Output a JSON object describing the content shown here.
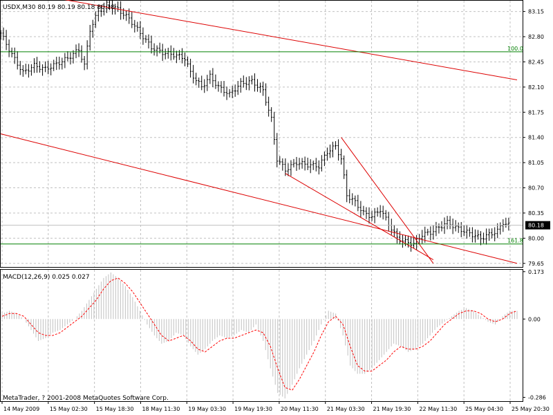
{
  "chart_data": [
    {
      "type": "ohlc",
      "title": "USDX,M30 80.19 80.19 80.18 80.18",
      "ylim": [
        79.6,
        83.3
      ],
      "grid": true,
      "y_ticks": [
        "83.15",
        "82.80",
        "82.45",
        "82.10",
        "81.75",
        "81.40",
        "81.05",
        "80.70",
        "80.35",
        "80.00",
        "79.65"
      ],
      "current_price_label": "80.18",
      "current_price": 80.18,
      "fib_levels": [
        {
          "label": "100.0",
          "value": 82.59
        },
        {
          "label": "161.8",
          "value": 79.92
        }
      ],
      "x_labels": [
        "14 May 2009",
        "15 May 02:30",
        "15 May 18:30",
        "18 May 11:30",
        "19 May 03:30",
        "19 May 19:30",
        "20 May 11:30",
        "21 May 03:30",
        "21 May 19:30",
        "22 May 11:30",
        "25 May 04:30",
        "25 May 20:30"
      ],
      "close_path": [
        [
          0,
          82.85
        ],
        [
          4,
          82.55
        ],
        [
          8,
          82.3
        ],
        [
          12,
          82.4
        ],
        [
          16,
          82.35
        ],
        [
          20,
          82.42
        ],
        [
          24,
          82.5
        ],
        [
          28,
          82.62
        ],
        [
          30,
          82.4
        ],
        [
          32,
          82.9
        ],
        [
          35,
          83.15
        ],
        [
          38,
          83.25
        ],
        [
          42,
          83.18
        ],
        [
          46,
          83.05
        ],
        [
          50,
          82.85
        ],
        [
          54,
          82.65
        ],
        [
          58,
          82.58
        ],
        [
          62,
          82.55
        ],
        [
          66,
          82.5
        ],
        [
          68,
          82.3
        ],
        [
          72,
          82.1
        ],
        [
          75,
          82.25
        ],
        [
          78,
          82.1
        ],
        [
          82,
          82.0
        ],
        [
          86,
          82.15
        ],
        [
          90,
          82.18
        ],
        [
          94,
          82.05
        ],
        [
          97,
          81.65
        ],
        [
          99,
          81.1
        ],
        [
          102,
          80.95
        ],
        [
          106,
          81.05
        ],
        [
          110,
          81.02
        ],
        [
          114,
          81.0
        ],
        [
          117,
          81.2
        ],
        [
          120,
          81.28
        ],
        [
          122,
          81.1
        ],
        [
          124,
          80.6
        ],
        [
          127,
          80.5
        ],
        [
          130,
          80.35
        ],
        [
          133,
          80.3
        ],
        [
          136,
          80.4
        ],
        [
          139,
          80.2
        ],
        [
          142,
          80.0
        ],
        [
          145,
          79.95
        ],
        [
          148,
          79.92
        ],
        [
          151,
          80.05
        ],
        [
          154,
          80.08
        ],
        [
          157,
          80.15
        ],
        [
          160,
          80.22
        ],
        [
          163,
          80.15
        ],
        [
          166,
          80.1
        ],
        [
          169,
          80.05
        ],
        [
          172,
          80.0
        ],
        [
          175,
          80.05
        ],
        [
          178,
          80.1
        ],
        [
          180,
          80.22
        ],
        [
          182,
          80.18
        ]
      ],
      "trendlines": [
        {
          "from": [
            22,
            83.32
          ],
          "to": [
            185,
            82.2
          ],
          "color": "#dd0000"
        },
        {
          "from": [
            0,
            81.45
          ],
          "to": [
            185,
            79.65
          ],
          "color": "#dd0000"
        },
        {
          "from": [
            102,
            80.9
          ],
          "to": [
            155,
            79.7
          ],
          "color": "#dd0000"
        },
        {
          "from": [
            122,
            81.4
          ],
          "to": [
            155,
            79.65
          ],
          "color": "#dd0000"
        }
      ]
    },
    {
      "type": "macd",
      "title": "MACD(12,26,9) 0.025 0.027",
      "ylim": [
        -0.3,
        0.18
      ],
      "y_ticks": [
        "0.173",
        "0.00",
        "-0.286"
      ],
      "histogram": [
        0.02,
        0.03,
        0.02,
        0.0,
        -0.04,
        -0.08,
        -0.07,
        -0.05,
        -0.04,
        -0.02,
        0.0,
        0.03,
        0.07,
        0.11,
        0.15,
        0.17,
        0.15,
        0.12,
        0.08,
        0.03,
        -0.02,
        -0.06,
        -0.09,
        -0.08,
        -0.05,
        -0.06,
        -0.1,
        -0.13,
        -0.11,
        -0.08,
        -0.06,
        -0.07,
        -0.06,
        -0.04,
        -0.05,
        -0.02,
        -0.08,
        -0.18,
        -0.27,
        -0.29,
        -0.24,
        -0.18,
        -0.13,
        -0.08,
        -0.02,
        0.03,
        0.02,
        -0.06,
        -0.17,
        -0.2,
        -0.2,
        -0.18,
        -0.15,
        -0.12,
        -0.09,
        -0.1,
        -0.12,
        -0.11,
        -0.09,
        -0.06,
        -0.03,
        -0.01,
        0.01,
        0.03,
        0.04,
        0.03,
        0.01,
        -0.01,
        -0.02,
        0.01,
        0.03,
        0.03
      ],
      "signal": [
        0.01,
        0.02,
        0.02,
        0.01,
        -0.02,
        -0.05,
        -0.06,
        -0.06,
        -0.05,
        -0.03,
        -0.01,
        0.01,
        0.04,
        0.07,
        0.11,
        0.14,
        0.15,
        0.13,
        0.1,
        0.06,
        0.02,
        -0.02,
        -0.06,
        -0.08,
        -0.07,
        -0.06,
        -0.08,
        -0.11,
        -0.12,
        -0.1,
        -0.08,
        -0.07,
        -0.07,
        -0.06,
        -0.05,
        -0.04,
        -0.05,
        -0.1,
        -0.18,
        -0.25,
        -0.26,
        -0.22,
        -0.17,
        -0.12,
        -0.06,
        -0.01,
        0.01,
        -0.02,
        -0.1,
        -0.17,
        -0.19,
        -0.19,
        -0.17,
        -0.15,
        -0.12,
        -0.1,
        -0.11,
        -0.11,
        -0.1,
        -0.08,
        -0.05,
        -0.02,
        0.0,
        0.02,
        0.03,
        0.03,
        0.02,
        0.0,
        -0.01,
        0.0,
        0.02,
        0.03
      ]
    }
  ],
  "footer": {
    "copyright": "MetaTrader, ? 2001-2008 MetaQuotes Software Corp."
  },
  "colors": {
    "bars": "#000000",
    "trendline": "#dd0000",
    "fib": "#008000",
    "grid": "#c0c0c0",
    "histogram": "#c0c0c0",
    "signal": "#ff0000",
    "price_box": "#000000"
  }
}
